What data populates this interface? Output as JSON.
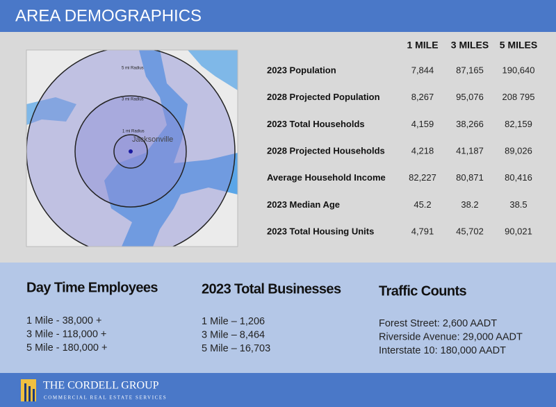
{
  "header": {
    "title": "AREA DEMOGRAPHICS"
  },
  "map": {
    "labels": [
      "5 mi Radius",
      "3 mi Radius",
      "1 mi Radius"
    ],
    "city": "Jacksonville"
  },
  "table": {
    "columns": [
      "1 MILE",
      "3 MILES",
      "5 MILES"
    ],
    "rows": [
      {
        "label": "2023 Population",
        "values": [
          "7,844",
          "87,165",
          "190,640"
        ]
      },
      {
        "label": "2028 Projected Population",
        "values": [
          "8,267",
          "95,076",
          "208 795"
        ]
      },
      {
        "label": "2023 Total Households",
        "values": [
          "4,159",
          "38,266",
          "82,159"
        ]
      },
      {
        "label": "2028 Projected Households",
        "values": [
          "4,218",
          "41,187",
          "89,026"
        ]
      },
      {
        "label": "Average Household Income",
        "values": [
          "82,227",
          "80,871",
          "80,416"
        ]
      },
      {
        "label": "2023 Median Age",
        "values": [
          "45.2",
          "38.2",
          "38.5"
        ]
      },
      {
        "label": "2023 Total Housing Units",
        "values": [
          "4,791",
          "45,702",
          "90,021"
        ]
      }
    ]
  },
  "sections": [
    {
      "title": "Day Time Employees",
      "lines": [
        "1 Mile - 38,000 +",
        "3 Mile - 118,000 +",
        "5 Mile - 180,000 +"
      ]
    },
    {
      "title": "2023 Total Businesses",
      "lines": [
        "1 Mile – 1,206",
        "3 Mile – 8,464",
        "5 Mile – 16,703"
      ]
    },
    {
      "title": "Traffic Counts",
      "lines": [
        "Forest Street: 2,600 AADT",
        "Riverside Avenue: 29,000 AADT",
        "Interstate 10: 180,000 AADT"
      ]
    }
  ],
  "footer": {
    "name": "THE CORDELL GROUP",
    "tagline": "COMMERCIAL REAL ESTATE SERVICES"
  }
}
